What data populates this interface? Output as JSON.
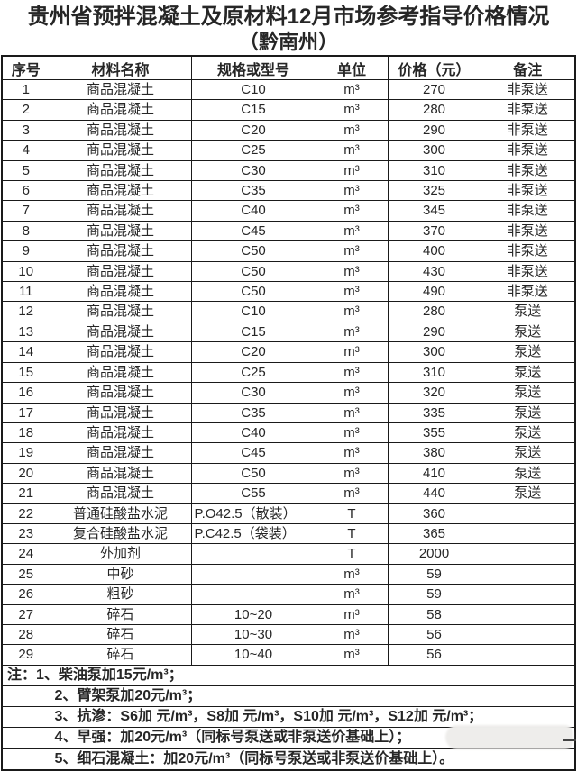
{
  "title": {
    "line1": "贵州省预拌混凝土及原材料12月市场参考指导价格情况",
    "line2": "（黔南州）"
  },
  "table": {
    "headers": [
      "序号",
      "材料名称",
      "规格或型号",
      "单位",
      "价格（元）",
      "备注"
    ],
    "rows": [
      {
        "no": "1",
        "name": "商品混凝土",
        "spec": "C10",
        "unit": "m³",
        "price": "270",
        "remark": "非泵送"
      },
      {
        "no": "2",
        "name": "商品混凝土",
        "spec": "C15",
        "unit": "m³",
        "price": "280",
        "remark": "非泵送"
      },
      {
        "no": "3",
        "name": "商品混凝土",
        "spec": "C20",
        "unit": "m³",
        "price": "290",
        "remark": "非泵送"
      },
      {
        "no": "4",
        "name": "商品混凝土",
        "spec": "C25",
        "unit": "m³",
        "price": "300",
        "remark": "非泵送"
      },
      {
        "no": "5",
        "name": "商品混凝土",
        "spec": "C30",
        "unit": "m³",
        "price": "310",
        "remark": "非泵送"
      },
      {
        "no": "6",
        "name": "商品混凝土",
        "spec": "C35",
        "unit": "m³",
        "price": "325",
        "remark": "非泵送"
      },
      {
        "no": "7",
        "name": "商品混凝土",
        "spec": "C40",
        "unit": "m³",
        "price": "345",
        "remark": "非泵送"
      },
      {
        "no": "8",
        "name": "商品混凝土",
        "spec": "C45",
        "unit": "m³",
        "price": "370",
        "remark": "非泵送"
      },
      {
        "no": "9",
        "name": "商品混凝土",
        "spec": "C50",
        "unit": "m³",
        "price": "400",
        "remark": "非泵送"
      },
      {
        "no": "10",
        "name": "商品混凝土",
        "spec": "C50",
        "unit": "m³",
        "price": "430",
        "remark": "非泵送"
      },
      {
        "no": "11",
        "name": "商品混凝土",
        "spec": "C50",
        "unit": "m³",
        "price": "490",
        "remark": "非泵送"
      },
      {
        "no": "12",
        "name": "商品混凝土",
        "spec": "C10",
        "unit": "m³",
        "price": "280",
        "remark": "泵送"
      },
      {
        "no": "13",
        "name": "商品混凝土",
        "spec": "C15",
        "unit": "m³",
        "price": "290",
        "remark": "泵送"
      },
      {
        "no": "14",
        "name": "商品混凝土",
        "spec": "C20",
        "unit": "m³",
        "price": "300",
        "remark": "泵送"
      },
      {
        "no": "15",
        "name": "商品混凝土",
        "spec": "C25",
        "unit": "m³",
        "price": "310",
        "remark": "泵送"
      },
      {
        "no": "16",
        "name": "商品混凝土",
        "spec": "C30",
        "unit": "m³",
        "price": "320",
        "remark": "泵送"
      },
      {
        "no": "17",
        "name": "商品混凝土",
        "spec": "C35",
        "unit": "m³",
        "price": "335",
        "remark": "泵送"
      },
      {
        "no": "18",
        "name": "商品混凝土",
        "spec": "C40",
        "unit": "m³",
        "price": "355",
        "remark": "泵送"
      },
      {
        "no": "19",
        "name": "商品混凝土",
        "spec": "C45",
        "unit": "m³",
        "price": "380",
        "remark": "泵送"
      },
      {
        "no": "20",
        "name": "商品混凝土",
        "spec": "C50",
        "unit": "m³",
        "price": "410",
        "remark": "泵送"
      },
      {
        "no": "21",
        "name": "商品混凝土",
        "spec": "C55",
        "unit": "m³",
        "price": "440",
        "remark": "泵送"
      },
      {
        "no": "22",
        "name": "普通硅酸盐水泥",
        "spec": "P.O42.5（散装）",
        "unit": "T",
        "price": "360",
        "remark": ""
      },
      {
        "no": "23",
        "name": "复合硅酸盐水泥",
        "spec": "P.C42.5（袋装）",
        "unit": "T",
        "price": "365",
        "remark": ""
      },
      {
        "no": "24",
        "name": "外加剂",
        "spec": "",
        "unit": "T",
        "price": "2000",
        "remark": ""
      },
      {
        "no": "25",
        "name": "中砂",
        "spec": "",
        "unit": "m³",
        "price": "59",
        "remark": ""
      },
      {
        "no": "26",
        "name": "粗砂",
        "spec": "",
        "unit": "m³",
        "price": "59",
        "remark": ""
      },
      {
        "no": "27",
        "name": "碎石",
        "spec": "10~20",
        "unit": "m³",
        "price": "58",
        "remark": ""
      },
      {
        "no": "28",
        "name": "碎石",
        "spec": "10~30",
        "unit": "m³",
        "price": "56",
        "remark": ""
      },
      {
        "no": "29",
        "name": "碎石",
        "spec": "10~40",
        "unit": "m³",
        "price": "56",
        "remark": ""
      }
    ]
  },
  "notes": {
    "first": "注：1、柴油泵加15元/m³；",
    "items": [
      "2、臂架泵加20元/m³；",
      "3、抗渗：S6加 元/m³，S8加 元/m³，S10加 元/m³，S12加 元/m³；",
      "4、早强：加20元/m³（同标号泵送或非泵送价基础上）；",
      "5、细石混凝土：加20元/m³（同标号泵送或非泵送价基础上）。"
    ]
  },
  "colors": {
    "border": "#1a1a1a",
    "text": "#262626",
    "background": "#ffffff",
    "smudge": "#eeedeb"
  }
}
